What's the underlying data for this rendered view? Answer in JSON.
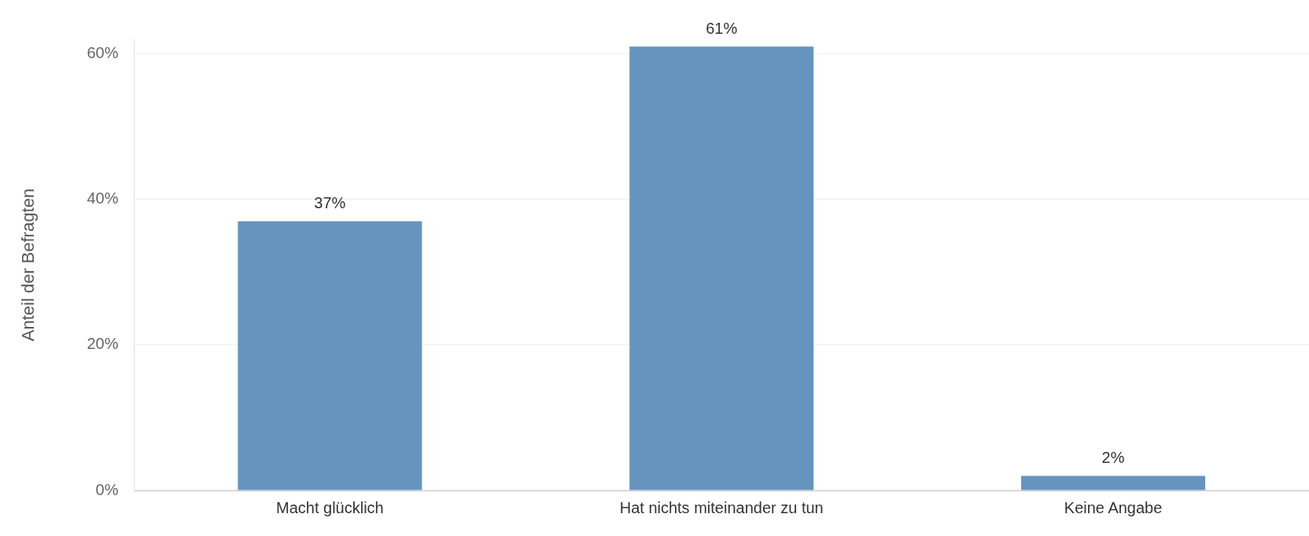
{
  "chart_data": {
    "type": "bar",
    "ylabel": "Anteil der Befragten",
    "categories": [
      "Macht glücklich",
      "Hat nichts miteinander zu tun",
      "Keine Angabe"
    ],
    "values": [
      37,
      61,
      2
    ],
    "color": "#6694be",
    "value_labels": [
      "37%",
      "61%",
      "2%"
    ],
    "ylim": [
      0,
      62
    ],
    "yticks": [
      {
        "value": 0,
        "label": "0%"
      },
      {
        "value": 20,
        "label": "20%"
      },
      {
        "value": 40,
        "label": "40%"
      },
      {
        "value": 60,
        "label": "60%"
      }
    ],
    "grid": "y",
    "legend": false
  }
}
